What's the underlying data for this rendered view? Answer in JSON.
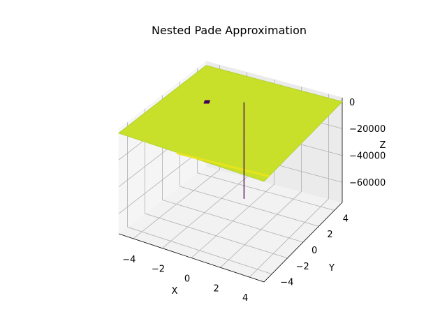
{
  "chart_data": {
    "type": "surface3d",
    "title": "Nested Pade Approximation",
    "xlabel": "X",
    "ylabel": "Y",
    "zlabel": "Z",
    "xlim": [
      -5,
      5
    ],
    "ylim": [
      -5,
      5
    ],
    "zlim": [
      -75000,
      3000
    ],
    "x_ticks": [
      {
        "v": -4,
        "label": "−4"
      },
      {
        "v": -2,
        "label": "−2"
      },
      {
        "v": 0,
        "label": "0"
      },
      {
        "v": 2,
        "label": "2"
      },
      {
        "v": 4,
        "label": "4"
      }
    ],
    "y_ticks": [
      {
        "v": -4,
        "label": "−4"
      },
      {
        "v": -2,
        "label": "−2"
      },
      {
        "v": 0,
        "label": "0"
      },
      {
        "v": 2,
        "label": "2"
      },
      {
        "v": 4,
        "label": "4"
      }
    ],
    "z_ticks": [
      {
        "v": 0,
        "label": "0"
      },
      {
        "v": -20000,
        "label": "−20000"
      },
      {
        "v": -40000,
        "label": "−40000"
      },
      {
        "v": -60000,
        "label": "−60000"
      }
    ],
    "surface": {
      "baseline_z": 0,
      "colormap": "viridis",
      "spike": {
        "x": -0.5,
        "y": 2.2,
        "z_min": -72000
      }
    },
    "grid": true,
    "colors": {
      "surface": "#c8e02a",
      "surface_edge": "#b5d22a",
      "surface_dark": "#e6e41d",
      "spike": "#440154"
    }
  }
}
